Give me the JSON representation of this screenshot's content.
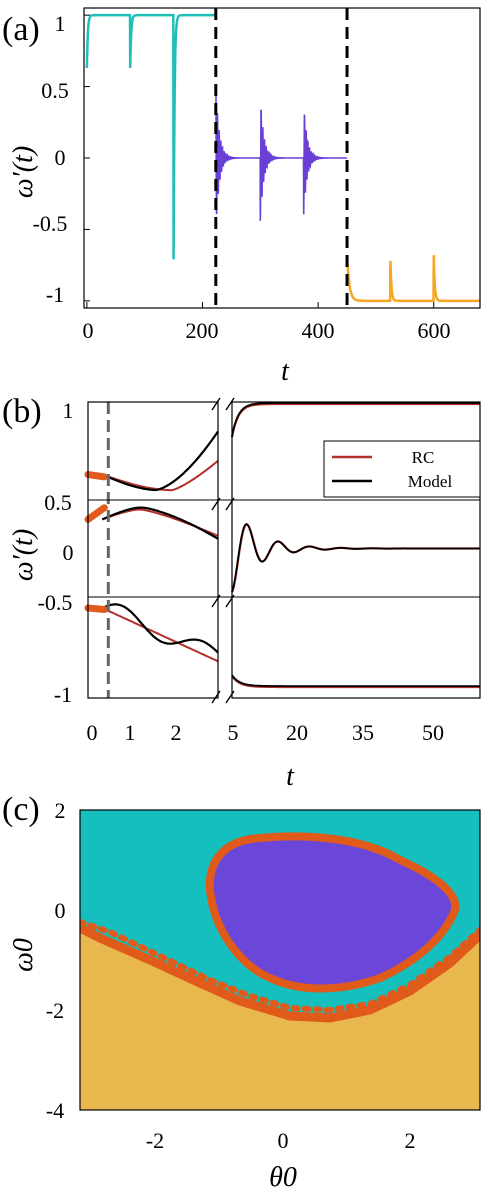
{
  "figure": {
    "panel_labels": [
      "(a)",
      "(b)",
      "(c)"
    ]
  },
  "chart_data": [
    {
      "panel": "(a)",
      "type": "line",
      "xlabel": "t",
      "ylabel": "ω′(t)",
      "xlim": [
        -5,
        680
      ],
      "ylim": [
        -1.05,
        1.05
      ],
      "xticks": [
        "0",
        "200",
        "400",
        "600"
      ],
      "yticks": [
        "1",
        "0.5",
        "0",
        "-0.5",
        "-1"
      ],
      "vlines_x": [
        223,
        450
      ],
      "colors": {
        "seg1": "#1fbfb8",
        "seg2": "#6a3fd6",
        "seg3": "#f5a623",
        "vline": "#000000"
      },
      "segments": [
        {
          "x_range": [
            0,
            223
          ],
          "baseline": 1.0,
          "spike_t": [
            0,
            75,
            150
          ],
          "spike_min": [
            0.63,
            0.63,
            -0.71
          ]
        },
        {
          "x_range": [
            223,
            450
          ],
          "baseline": 0.0,
          "spike_t": [
            223,
            300,
            375
          ],
          "spike_min": [
            -0.55,
            -0.5,
            -0.42
          ],
          "spike_max": [
            0.47,
            0.38,
            0.37
          ]
        },
        {
          "x_range": [
            450,
            680
          ],
          "baseline": -1.0,
          "spike_t": [
            450,
            525,
            600
          ],
          "spike_max": [
            -0.68,
            -0.72,
            -0.68
          ]
        }
      ]
    },
    {
      "panel": "(b)",
      "type": "line",
      "xlabel": "t",
      "ylabel": "ω′(t)",
      "xticks": [
        "0",
        "1",
        "2",
        "5",
        "20",
        "35",
        "50"
      ],
      "yticks": [
        "1",
        "0.5",
        "0",
        "-0.5",
        "-1"
      ],
      "vline_x": 0.5,
      "legend": [
        "RC",
        "Model"
      ],
      "legend_position": "right",
      "colors": {
        "RC": "#b2302a",
        "Model": "#000000",
        "init": "#e25a1c",
        "vline": "#666666"
      },
      "subplots": [
        {
          "left_start": 0.63,
          "rc_min": 0.55,
          "model_min": 0.55,
          "model_end": 0.85,
          "rc_end": 0.7,
          "final": 0.99
        },
        {
          "left_start": 0.3,
          "peak": 0.43,
          "model_end": 0.1,
          "rc_end": 0.15,
          "final": 0.0
        },
        {
          "left_start": -0.56,
          "rc_end": -0.85,
          "model_end": -0.82,
          "final": -0.99
        }
      ]
    },
    {
      "panel": "(c)",
      "type": "heatmap",
      "xlabel": "θ0",
      "ylabel": "ω0",
      "xlim": [
        -3.14,
        3.14
      ],
      "ylim": [
        -4,
        2
      ],
      "xticks": [
        "-2",
        "0",
        "2"
      ],
      "yticks": [
        "2",
        "0",
        "-2",
        "-4"
      ],
      "colors": {
        "teal": "#14bfbd",
        "purple": "#6b47d9",
        "yellow": "#e8b84f",
        "boundary": "#e05a1a"
      }
    }
  ]
}
